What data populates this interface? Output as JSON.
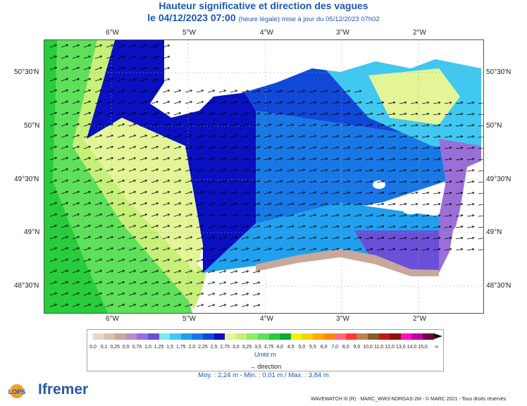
{
  "header": {
    "title": "Hauteur significative et direction des vagues",
    "date_main": "le 04/12/2023 07:00",
    "date_note": "(heure légale) mise à jour du 05/12/2023 07h02"
  },
  "axes": {
    "lon_labels": [
      "6°W",
      "5°W",
      "4°W",
      "3°W",
      "2°W"
    ],
    "lat_labels": [
      "50°30'N",
      "50°N",
      "49°30'N",
      "49°N",
      "48°30'N"
    ]
  },
  "legend": {
    "classes": [
      {
        "label": "0,0",
        "color": "#e8d6c8"
      },
      {
        "label": "0,1",
        "color": "#d8c0b0"
      },
      {
        "label": "0,25",
        "color": "#c8a89a"
      },
      {
        "label": "0,5",
        "color": "#b88ec8"
      },
      {
        "label": "0,75",
        "color": "#9a6fd8"
      },
      {
        "label": "1,0",
        "color": "#6b4fd8"
      },
      {
        "label": "1,25",
        "color": "#7fe8f0"
      },
      {
        "label": "1,5",
        "color": "#40c8f0"
      },
      {
        "label": "1,75",
        "color": "#20a0ee"
      },
      {
        "label": "2,0",
        "color": "#1878e6"
      },
      {
        "label": "2,25",
        "color": "#1048d8"
      },
      {
        "label": "2,5",
        "color": "#0a10c0"
      },
      {
        "label": "2,75",
        "color": "#e4f598"
      },
      {
        "label": "3,0",
        "color": "#c6f078"
      },
      {
        "label": "3,25",
        "color": "#92ea6c"
      },
      {
        "label": "3,5",
        "color": "#5ee05a"
      },
      {
        "label": "3,75",
        "color": "#28cc3c"
      },
      {
        "label": "4,0",
        "color": "#10a838"
      },
      {
        "label": "4,5",
        "color": "#f6f000"
      },
      {
        "label": "5,0",
        "color": "#ffd200"
      },
      {
        "label": "5,5",
        "color": "#ffaa00"
      },
      {
        "label": "6,0",
        "color": "#ff8a00"
      },
      {
        "label": "7,0",
        "color": "#ff6a80"
      },
      {
        "label": "8,0",
        "color": "#ff3838"
      },
      {
        "label": "9,0",
        "color": "#c08050"
      },
      {
        "label": "10,0",
        "color": "#8a5a28"
      },
      {
        "label": "11,0",
        "color": "#c01818"
      },
      {
        "label": "12,0",
        "color": "#901010"
      },
      {
        "label": "13,0",
        "color": "#ff10c0"
      },
      {
        "label": "14,0",
        "color": "#c000a0"
      },
      {
        "label": "15,0",
        "color": "#700040"
      }
    ],
    "overflow_label": "∞",
    "unit": "Unité:m",
    "direction_label": "direction"
  },
  "stats": "Moy. : 2,24 m   -   Min. : 0,01 m / Max. : 3,84 m",
  "footer": "WAVEWATCH III (R) - MARC_WW3-NORGAS-2M - © MARC 2021 - Tous droits réservés",
  "logos": {
    "lops": "LOPS",
    "ifremer": "Ifremer"
  }
}
